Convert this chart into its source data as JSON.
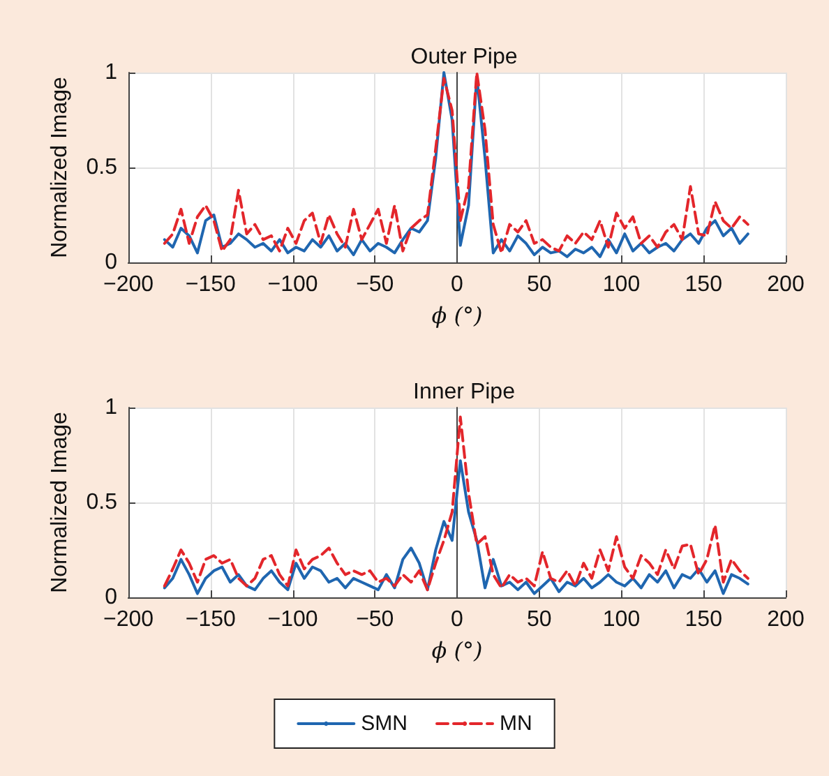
{
  "chart_data": [
    {
      "type": "line",
      "title": "Outer Pipe",
      "xlabel": "ϕ (°)",
      "ylabel": "Normalized Image",
      "xlim": [
        -200,
        200
      ],
      "xticks": [
        -200,
        -150,
        -100,
        -50,
        0,
        50,
        100,
        150,
        200
      ],
      "ylim": [
        0,
        1
      ],
      "yticks": [
        0,
        0.5,
        1
      ],
      "grid": true,
      "legend": false,
      "marker": "none",
      "x": [
        -178,
        -173,
        -168,
        -163,
        -158,
        -153,
        -148,
        -143,
        -138,
        -133,
        -128,
        -123,
        -118,
        -113,
        -108,
        -103,
        -98,
        -93,
        -88,
        -83,
        -78,
        -73,
        -68,
        -63,
        -58,
        -53,
        -48,
        -43,
        -38,
        -33,
        -28,
        -23,
        -18,
        -13,
        -8,
        -3,
        2,
        7,
        12,
        17,
        22,
        27,
        32,
        37,
        42,
        47,
        52,
        57,
        62,
        67,
        72,
        77,
        82,
        87,
        92,
        97,
        102,
        107,
        112,
        117,
        122,
        127,
        132,
        137,
        142,
        147,
        152,
        157,
        162,
        167,
        172,
        177
      ],
      "series": [
        {
          "color": "#1f66b0",
          "line_style": "solid",
          "values": [
            0.12,
            0.08,
            0.18,
            0.14,
            0.05,
            0.22,
            0.25,
            0.08,
            0.1,
            0.15,
            0.12,
            0.08,
            0.1,
            0.06,
            0.12,
            0.05,
            0.08,
            0.06,
            0.12,
            0.08,
            0.14,
            0.06,
            0.1,
            0.04,
            0.12,
            0.06,
            0.1,
            0.08,
            0.05,
            0.12,
            0.18,
            0.16,
            0.22,
            0.55,
            1.0,
            0.75,
            0.09,
            0.3,
            0.98,
            0.55,
            0.05,
            0.12,
            0.06,
            0.14,
            0.1,
            0.04,
            0.08,
            0.05,
            0.06,
            0.03,
            0.07,
            0.05,
            0.08,
            0.03,
            0.12,
            0.05,
            0.15,
            0.06,
            0.1,
            0.05,
            0.08,
            0.1,
            0.06,
            0.12,
            0.15,
            0.1,
            0.18,
            0.22,
            0.14,
            0.18,
            0.1,
            0.15
          ]
        },
        {
          "color": "#e3262b",
          "line_style": "dashed",
          "values": [
            0.1,
            0.15,
            0.28,
            0.1,
            0.24,
            0.3,
            0.22,
            0.06,
            0.12,
            0.38,
            0.15,
            0.2,
            0.12,
            0.14,
            0.06,
            0.18,
            0.1,
            0.22,
            0.26,
            0.1,
            0.25,
            0.15,
            0.08,
            0.28,
            0.12,
            0.2,
            0.28,
            0.1,
            0.3,
            0.06,
            0.18,
            0.22,
            0.25,
            0.6,
            0.97,
            0.8,
            0.22,
            0.4,
            1.0,
            0.7,
            0.2,
            0.05,
            0.2,
            0.16,
            0.22,
            0.1,
            0.12,
            0.08,
            0.06,
            0.14,
            0.1,
            0.16,
            0.12,
            0.22,
            0.08,
            0.26,
            0.18,
            0.24,
            0.1,
            0.14,
            0.08,
            0.16,
            0.2,
            0.12,
            0.4,
            0.15,
            0.14,
            0.32,
            0.22,
            0.18,
            0.24,
            0.2
          ]
        }
      ]
    },
    {
      "type": "line",
      "title": "Inner Pipe",
      "xlabel": "ϕ (°)",
      "ylabel": "Normalized Image",
      "xlim": [
        -200,
        200
      ],
      "xticks": [
        -200,
        -150,
        -100,
        -50,
        0,
        50,
        100,
        150,
        200
      ],
      "ylim": [
        0,
        1
      ],
      "yticks": [
        0,
        0.5,
        1
      ],
      "grid": true,
      "legend": "bottom",
      "marker": "none",
      "x": [
        -178,
        -173,
        -168,
        -163,
        -158,
        -153,
        -148,
        -143,
        -138,
        -133,
        -128,
        -123,
        -118,
        -113,
        -108,
        -103,
        -98,
        -93,
        -88,
        -83,
        -78,
        -73,
        -68,
        -63,
        -58,
        -53,
        -48,
        -43,
        -38,
        -33,
        -28,
        -23,
        -18,
        -13,
        -8,
        -3,
        2,
        7,
        12,
        17,
        22,
        27,
        32,
        37,
        42,
        47,
        52,
        57,
        62,
        67,
        72,
        77,
        82,
        87,
        92,
        97,
        102,
        107,
        112,
        117,
        122,
        127,
        132,
        137,
        142,
        147,
        152,
        157,
        162,
        167,
        172,
        177
      ],
      "series": [
        {
          "name": "SMN",
          "color": "#1f66b0",
          "line_style": "solid",
          "values": [
            0.05,
            0.1,
            0.2,
            0.12,
            0.02,
            0.1,
            0.14,
            0.16,
            0.08,
            0.12,
            0.06,
            0.04,
            0.1,
            0.14,
            0.08,
            0.04,
            0.18,
            0.1,
            0.16,
            0.14,
            0.08,
            0.1,
            0.05,
            0.1,
            0.08,
            0.06,
            0.04,
            0.12,
            0.05,
            0.2,
            0.26,
            0.18,
            0.04,
            0.25,
            0.4,
            0.3,
            0.72,
            0.45,
            0.3,
            0.05,
            0.2,
            0.06,
            0.08,
            0.04,
            0.08,
            0.02,
            0.06,
            0.1,
            0.03,
            0.08,
            0.06,
            0.1,
            0.05,
            0.08,
            0.12,
            0.08,
            0.06,
            0.1,
            0.05,
            0.12,
            0.08,
            0.14,
            0.05,
            0.12,
            0.1,
            0.15,
            0.08,
            0.14,
            0.02,
            0.12,
            0.1,
            0.07
          ]
        },
        {
          "name": "MN",
          "color": "#e3262b",
          "line_style": "dashed",
          "values": [
            0.06,
            0.15,
            0.25,
            0.18,
            0.08,
            0.2,
            0.22,
            0.18,
            0.2,
            0.1,
            0.06,
            0.1,
            0.2,
            0.22,
            0.12,
            0.06,
            0.25,
            0.15,
            0.2,
            0.22,
            0.26,
            0.18,
            0.12,
            0.14,
            0.12,
            0.14,
            0.08,
            0.1,
            0.06,
            0.12,
            0.08,
            0.14,
            0.04,
            0.18,
            0.3,
            0.45,
            0.95,
            0.55,
            0.28,
            0.32,
            0.12,
            0.05,
            0.12,
            0.08,
            0.1,
            0.06,
            0.24,
            0.1,
            0.08,
            0.14,
            0.06,
            0.18,
            0.1,
            0.25,
            0.14,
            0.32,
            0.16,
            0.1,
            0.22,
            0.18,
            0.12,
            0.25,
            0.15,
            0.27,
            0.28,
            0.12,
            0.2,
            0.38,
            0.08,
            0.2,
            0.14,
            0.1
          ]
        }
      ]
    }
  ]
}
